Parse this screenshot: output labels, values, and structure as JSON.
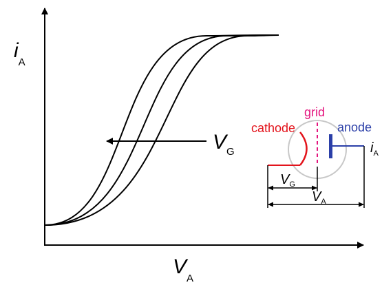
{
  "axes": {
    "y_label": {
      "symbol": "i",
      "subscript": "A"
    },
    "x_label": {
      "symbol": "V",
      "subscript": "A"
    }
  },
  "arrow_label": {
    "symbol": "V",
    "subscript": "G"
  },
  "tube": {
    "cathode_label": "cathode",
    "grid_label": "grid",
    "anode_label": "anode",
    "current_label": {
      "symbol": "i",
      "subscript": "A"
    },
    "vg_label": {
      "symbol": "V",
      "subscript": "G"
    },
    "va_label": {
      "symbol": "V",
      "subscript": "A"
    }
  },
  "colors": {
    "line": "#000000",
    "cathode": "#e3141c",
    "grid": "#e4157e",
    "anode": "#2b3fa8",
    "tube_outline": "#c8c8c8"
  }
}
